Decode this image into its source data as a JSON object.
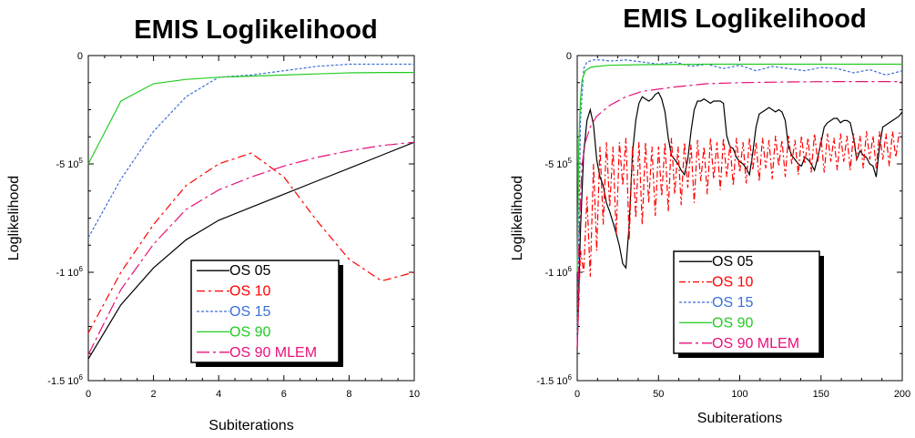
{
  "chart_data": [
    {
      "type": "line",
      "title": "EMIS Loglikelihood",
      "xlabel": "Subiterations",
      "ylabel": "Loglikelihood",
      "xlim": [
        0,
        10
      ],
      "ylim": [
        -1500000,
        0
      ],
      "x_ticks": [
        "0",
        "2",
        "4",
        "6",
        "8",
        "10"
      ],
      "y_ticks": [
        {
          "base": "0",
          "exp": ""
        },
        {
          "base": "-5 10",
          "exp": "5"
        },
        {
          "base": "-1 10",
          "exp": "6"
        },
        {
          "base": "-1.5 10",
          "exp": "6"
        }
      ],
      "legend_position": "bottom-right",
      "series": [
        {
          "name": "OS 05",
          "color": "#000000",
          "dash": "",
          "x": [
            0,
            1,
            2,
            3,
            4,
            5,
            6,
            7,
            8,
            9,
            10
          ],
          "values": [
            -1400000,
            -1150000,
            -980000,
            -850000,
            -760000,
            -700000,
            -640000,
            -580000,
            -520000,
            -460000,
            -400000
          ]
        },
        {
          "name": "OS 10",
          "color": "#ff0000",
          "dash": "9,4,3,4",
          "x": [
            0,
            1,
            2,
            3,
            4,
            5,
            6,
            7,
            8,
            9,
            10
          ],
          "values": [
            -1280000,
            -1000000,
            -780000,
            -600000,
            -500000,
            -450000,
            -560000,
            -760000,
            -940000,
            -1040000,
            -1000000
          ]
        },
        {
          "name": "OS 15",
          "color": "#3b6fd8",
          "dash": "3,2",
          "x": [
            0,
            1,
            2,
            3,
            4,
            5,
            6,
            7,
            8,
            9,
            10
          ],
          "values": [
            -840000,
            -570000,
            -350000,
            -190000,
            -100000,
            -90000,
            -70000,
            -50000,
            -40000,
            -40000,
            -40000
          ]
        },
        {
          "name": "OS 90",
          "color": "#22cc22",
          "dash": "",
          "x": [
            0,
            1,
            2,
            3,
            4,
            5,
            6,
            7,
            8,
            9,
            10
          ],
          "values": [
            -500000,
            -210000,
            -130000,
            -110000,
            -100000,
            -95000,
            -90000,
            -85000,
            -80000,
            -78000,
            -78000
          ]
        },
        {
          "name": "OS 90 MLEM",
          "color": "#e8107a",
          "dash": "14,4,3,4",
          "x": [
            0,
            1,
            2,
            3,
            4,
            5,
            6,
            7,
            8,
            9,
            10
          ],
          "values": [
            -1380000,
            -1080000,
            -870000,
            -710000,
            -620000,
            -560000,
            -510000,
            -470000,
            -440000,
            -415000,
            -400000
          ]
        }
      ]
    },
    {
      "type": "line",
      "title": "EMIS Loglikelihood",
      "xlabel": "Subiterations",
      "ylabel": "Loglikelihood",
      "xlim": [
        0,
        200
      ],
      "ylim": [
        -1500000,
        0
      ],
      "x_ticks": [
        "0",
        "50",
        "100",
        "150",
        "200"
      ],
      "y_ticks": [
        {
          "base": "0",
          "exp": ""
        },
        {
          "base": "-5 10",
          "exp": "5"
        },
        {
          "base": "-1 10",
          "exp": "6"
        },
        {
          "base": "-1.5 10",
          "exp": "6"
        }
      ],
      "legend_position": "bottom-center",
      "series": [
        {
          "name": "OS 05",
          "color": "#000000",
          "dash": "",
          "x": [
            0,
            2,
            4,
            6,
            8,
            10,
            12,
            14,
            16,
            18,
            20,
            22,
            24,
            26,
            28,
            30,
            32,
            34,
            36,
            38,
            40,
            42,
            44,
            46,
            48,
            50,
            52,
            54,
            56,
            58,
            60,
            62,
            64,
            66,
            68,
            70,
            72,
            74,
            76,
            78,
            80,
            82,
            84,
            86,
            88,
            90,
            92,
            94,
            96,
            98,
            100,
            102,
            104,
            106,
            108,
            110,
            112,
            114,
            116,
            118,
            120,
            122,
            124,
            126,
            128,
            130,
            132,
            134,
            136,
            138,
            140,
            142,
            144,
            146,
            148,
            150,
            152,
            154,
            156,
            158,
            160,
            162,
            164,
            166,
            168,
            170,
            172,
            174,
            176,
            178,
            180,
            182,
            184,
            186,
            188,
            190,
            192,
            194,
            196,
            198,
            200
          ],
          "values": [
            -1350000,
            -800000,
            -450000,
            -300000,
            -250000,
            -320000,
            -480000,
            -560000,
            -600000,
            -680000,
            -720000,
            -770000,
            -820000,
            -880000,
            -960000,
            -980000,
            -780000,
            -450000,
            -300000,
            -220000,
            -190000,
            -200000,
            -210000,
            -200000,
            -180000,
            -170000,
            -200000,
            -260000,
            -380000,
            -460000,
            -480000,
            -500000,
            -530000,
            -550000,
            -480000,
            -350000,
            -250000,
            -210000,
            -210000,
            -200000,
            -210000,
            -220000,
            -210000,
            -210000,
            -210000,
            -220000,
            -370000,
            -420000,
            -430000,
            -470000,
            -490000,
            -500000,
            -520000,
            -550000,
            -450000,
            -330000,
            -270000,
            -260000,
            -250000,
            -240000,
            -250000,
            -260000,
            -250000,
            -260000,
            -300000,
            -420000,
            -460000,
            -480000,
            -500000,
            -510000,
            -470000,
            -480000,
            -500000,
            -530000,
            -470000,
            -400000,
            -330000,
            -310000,
            -300000,
            -290000,
            -290000,
            -310000,
            -300000,
            -300000,
            -310000,
            -380000,
            -480000,
            -440000,
            -460000,
            -470000,
            -500000,
            -510000,
            -560000,
            -420000,
            -330000,
            -320000,
            -310000,
            -300000,
            -290000,
            -280000,
            -260000
          ]
        },
        {
          "name": "OS 10",
          "color": "#ff0000",
          "dash": "7,3,2,3",
          "x": [
            0,
            2,
            4,
            6,
            8,
            10,
            12,
            14,
            16,
            18,
            20,
            22,
            24,
            26,
            28,
            30,
            32,
            34,
            36,
            38,
            40,
            42,
            44,
            46,
            48,
            50,
            52,
            54,
            56,
            58,
            60,
            62,
            64,
            66,
            68,
            70,
            72,
            74,
            76,
            78,
            80,
            82,
            84,
            86,
            88,
            90,
            92,
            94,
            96,
            98,
            100,
            102,
            104,
            106,
            108,
            110,
            112,
            114,
            116,
            118,
            120,
            122,
            124,
            126,
            128,
            130,
            132,
            134,
            136,
            138,
            140,
            142,
            144,
            146,
            148,
            150,
            152,
            154,
            156,
            158,
            160,
            162,
            164,
            166,
            168,
            170,
            172,
            174,
            176,
            178,
            180,
            182,
            184,
            186,
            188,
            190,
            192,
            194,
            196,
            198,
            200
          ],
          "values": [
            -1350000,
            -900000,
            -1000000,
            -650000,
            -1020000,
            -500000,
            -900000,
            -420000,
            -780000,
            -400000,
            -700000,
            -420000,
            -830000,
            -400000,
            -600000,
            -380000,
            -850000,
            -420000,
            -750000,
            -400000,
            -780000,
            -400000,
            -680000,
            -420000,
            -740000,
            -420000,
            -650000,
            -400000,
            -720000,
            -380000,
            -640000,
            -420000,
            -690000,
            -400000,
            -610000,
            -410000,
            -680000,
            -390000,
            -580000,
            -420000,
            -640000,
            -380000,
            -570000,
            -400000,
            -620000,
            -380000,
            -560000,
            -410000,
            -600000,
            -380000,
            -540000,
            -400000,
            -590000,
            -380000,
            -530000,
            -400000,
            -580000,
            -380000,
            -520000,
            -390000,
            -570000,
            -370000,
            -510000,
            -390000,
            -560000,
            -370000,
            -500000,
            -390000,
            -550000,
            -370000,
            -500000,
            -380000,
            -540000,
            -360000,
            -490000,
            -380000,
            -540000,
            -360000,
            -490000,
            -380000,
            -530000,
            -360000,
            -490000,
            -370000,
            -530000,
            -360000,
            -480000,
            -370000,
            -520000,
            -350000,
            -480000,
            -370000,
            -520000,
            -350000,
            -480000,
            -360000,
            -510000,
            -350000,
            -470000,
            -360000,
            -350000
          ]
        },
        {
          "name": "OS 15",
          "color": "#3b6fd8",
          "dash": "3,2",
          "x": [
            0,
            2,
            4,
            6,
            10,
            15,
            20,
            30,
            40,
            50,
            60,
            70,
            80,
            90,
            100,
            110,
            120,
            130,
            140,
            150,
            160,
            170,
            180,
            190,
            200
          ],
          "values": [
            -1300000,
            -300000,
            -60000,
            -30000,
            -20000,
            -20000,
            -25000,
            -20000,
            -30000,
            -40000,
            -30000,
            -50000,
            -40000,
            -60000,
            -45000,
            -70000,
            -50000,
            -60000,
            -70000,
            -55000,
            -60000,
            -80000,
            -65000,
            -90000,
            -70000
          ]
        },
        {
          "name": "OS 90",
          "color": "#22cc22",
          "dash": "",
          "x": [
            0,
            1,
            2,
            3,
            5,
            8,
            12,
            20,
            40,
            80,
            120,
            160,
            200
          ],
          "values": [
            -1000000,
            -400000,
            -200000,
            -110000,
            -70000,
            -55000,
            -50000,
            -45000,
            -42000,
            -40000,
            -40000,
            -40000,
            -40000
          ]
        },
        {
          "name": "OS 90 MLEM",
          "color": "#e8107a",
          "dash": "14,4,3,4",
          "x": [
            0,
            1,
            2,
            3,
            5,
            8,
            12,
            20,
            30,
            40,
            60,
            80,
            100,
            130,
            160,
            200
          ],
          "values": [
            -1350000,
            -900000,
            -650000,
            -500000,
            -400000,
            -330000,
            -280000,
            -230000,
            -190000,
            -165000,
            -145000,
            -130000,
            -125000,
            -122000,
            -120000,
            -120000
          ]
        }
      ]
    }
  ]
}
